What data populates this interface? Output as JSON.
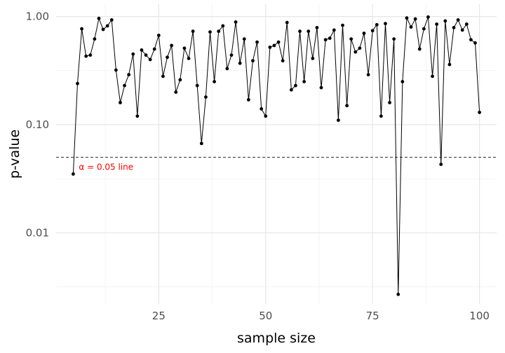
{
  "chart_data": {
    "type": "line",
    "title": "",
    "xlabel": "sample size",
    "ylabel": "p-value",
    "x_scale": "linear",
    "y_scale": "log10",
    "xlim": [
      1,
      104
    ],
    "ylim": [
      0.0022,
      1.3
    ],
    "x_ticks": [
      25,
      50,
      75,
      100
    ],
    "x_tick_labels": [
      "25",
      "50",
      "75",
      "100"
    ],
    "y_ticks": [
      0.01,
      0.1,
      1.0
    ],
    "y_tick_labels": [
      "0.01",
      "0.10",
      "1.00"
    ],
    "grid": true,
    "legend": "none",
    "reference_line": {
      "y": 0.05,
      "style": "dashed",
      "label": "α = 0.05 line",
      "label_color": "#ff0000"
    },
    "series": [
      {
        "color": "#000000",
        "x": [
          5,
          6,
          7,
          8,
          9,
          10,
          11,
          12,
          13,
          14,
          15,
          16,
          17,
          18,
          19,
          20,
          21,
          22,
          23,
          24,
          25,
          26,
          27,
          28,
          29,
          30,
          31,
          32,
          33,
          34,
          35,
          36,
          37,
          38,
          39,
          40,
          41,
          42,
          43,
          44,
          45,
          46,
          47,
          48,
          49,
          50,
          51,
          52,
          53,
          54,
          55,
          56,
          57,
          58,
          59,
          60,
          61,
          62,
          63,
          64,
          65,
          66,
          67,
          68,
          69,
          70,
          71,
          72,
          73,
          74,
          75,
          76,
          77,
          78,
          79,
          80,
          81,
          82,
          83,
          84,
          85,
          86,
          87,
          88,
          89,
          90,
          91,
          92,
          93,
          94,
          95,
          96,
          97,
          98,
          99,
          100
        ],
        "values": [
          0.035,
          0.24,
          0.77,
          0.43,
          0.44,
          0.62,
          0.96,
          0.76,
          0.82,
          0.93,
          0.32,
          0.16,
          0.23,
          0.29,
          0.45,
          0.12,
          0.49,
          0.44,
          0.4,
          0.5,
          0.67,
          0.28,
          0.42,
          0.54,
          0.2,
          0.26,
          0.51,
          0.41,
          0.73,
          0.23,
          0.067,
          0.18,
          0.72,
          0.25,
          0.73,
          0.82,
          0.33,
          0.44,
          0.89,
          0.37,
          0.62,
          0.17,
          0.39,
          0.58,
          0.14,
          0.12,
          0.52,
          0.54,
          0.58,
          0.39,
          0.88,
          0.21,
          0.23,
          0.73,
          0.25,
          0.73,
          0.41,
          0.79,
          0.22,
          0.61,
          0.63,
          0.75,
          0.11,
          0.83,
          0.15,
          0.62,
          0.47,
          0.51,
          0.7,
          0.29,
          0.74,
          0.84,
          0.12,
          0.86,
          0.16,
          0.62,
          0.0027,
          0.25,
          0.97,
          0.8,
          0.95,
          0.5,
          0.77,
          0.99,
          0.28,
          0.85,
          0.043,
          0.91,
          0.36,
          0.79,
          0.93,
          0.75,
          0.85,
          0.61,
          0.57,
          0.13
        ]
      }
    ]
  }
}
